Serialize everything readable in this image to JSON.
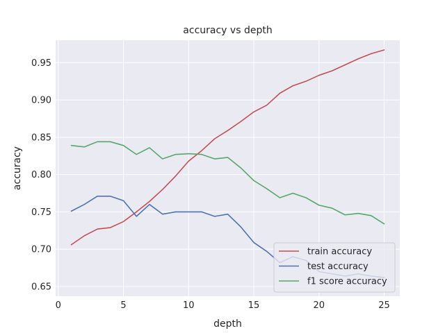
{
  "chart_data": {
    "type": "line",
    "title": "accuracy vs depth",
    "xlabel": "depth",
    "ylabel": "accuracy",
    "xlim": [
      -0.2,
      26.2
    ],
    "ylim": [
      0.637,
      0.98
    ],
    "xticks": [
      0,
      5,
      10,
      15,
      20,
      25
    ],
    "yticks": [
      0.65,
      0.7,
      0.75,
      0.8,
      0.85,
      0.9,
      0.95
    ],
    "ytick_labels": [
      "0.65",
      "0.70",
      "0.75",
      "0.80",
      "0.85",
      "0.90",
      "0.95"
    ],
    "grid": true,
    "legend_position": "lower-right",
    "x": [
      1,
      2,
      3,
      4,
      5,
      6,
      7,
      8,
      9,
      10,
      11,
      12,
      13,
      14,
      15,
      16,
      17,
      18,
      19,
      20,
      21,
      22,
      23,
      24,
      25
    ],
    "series": [
      {
        "name": "train accuracy",
        "color": "#c44e52",
        "values": [
          0.706,
          0.718,
          0.727,
          0.729,
          0.737,
          0.75,
          0.764,
          0.78,
          0.798,
          0.818,
          0.832,
          0.848,
          0.859,
          0.871,
          0.884,
          0.893,
          0.909,
          0.919,
          0.925,
          0.933,
          0.939,
          0.947,
          0.955,
          0.962,
          0.967
        ]
      },
      {
        "name": "test accuracy",
        "color": "#4c72b0",
        "values": [
          0.751,
          0.76,
          0.771,
          0.771,
          0.765,
          0.744,
          0.76,
          0.747,
          0.75,
          0.75,
          0.75,
          0.744,
          0.747,
          0.73,
          0.709,
          0.697,
          0.682,
          0.69,
          0.685,
          0.67,
          0.667,
          0.664,
          0.667,
          0.664,
          0.662
        ]
      },
      {
        "name": "f1 score accuracy",
        "color": "#55a868",
        "values": [
          0.839,
          0.837,
          0.844,
          0.844,
          0.839,
          0.827,
          0.836,
          0.821,
          0.827,
          0.828,
          0.827,
          0.821,
          0.823,
          0.809,
          0.792,
          0.781,
          0.769,
          0.775,
          0.769,
          0.759,
          0.755,
          0.746,
          0.748,
          0.745,
          0.734
        ]
      }
    ]
  }
}
